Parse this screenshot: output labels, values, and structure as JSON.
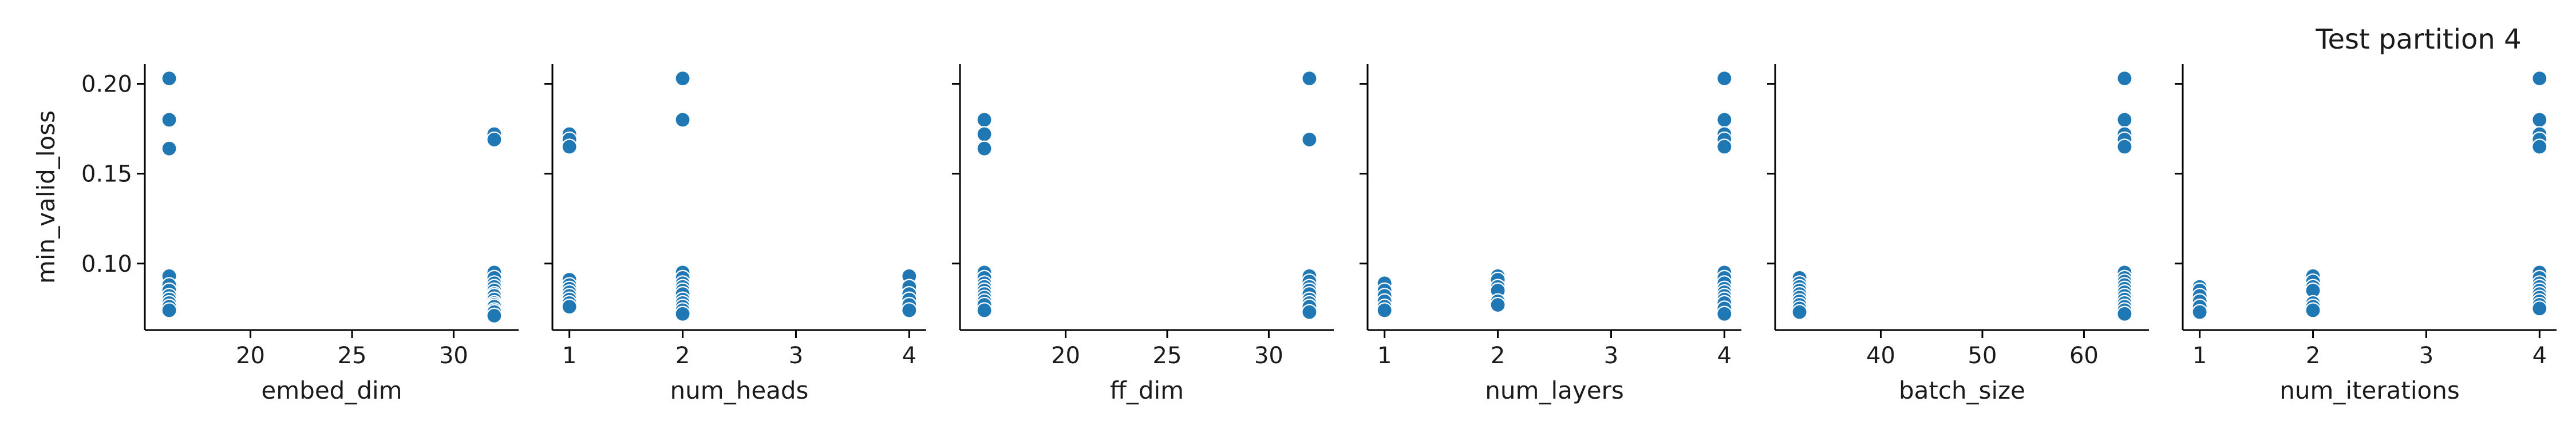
{
  "figure": {
    "title": "Test partition 4"
  },
  "chart_data": [
    {
      "type": "scatter",
      "xlabel": "embed_dim",
      "ylabel": "min_valid_loss",
      "xlim": [
        14.8,
        33.2
      ],
      "ylim": [
        0.063,
        0.211
      ],
      "xticks": [
        20,
        25,
        30
      ],
      "yticks": [
        0.1,
        0.15,
        0.2
      ],
      "color": "#1f77b4",
      "x": [
        16,
        16,
        16,
        16,
        16,
        16,
        16,
        16,
        16,
        16,
        16,
        32,
        32,
        32,
        32,
        32,
        32,
        32,
        32,
        32,
        32,
        32,
        32,
        32,
        32,
        32,
        32
      ],
      "y": [
        0.203,
        0.18,
        0.164,
        0.093,
        0.088,
        0.085,
        0.082,
        0.08,
        0.078,
        0.076,
        0.074,
        0.172,
        0.169,
        0.095,
        0.092,
        0.089,
        0.087,
        0.085,
        0.083,
        0.082,
        0.08,
        0.078,
        0.077,
        0.076,
        0.074,
        0.073,
        0.071
      ]
    },
    {
      "type": "scatter",
      "xlabel": "num_heads",
      "ylabel": "",
      "xlim": [
        0.85,
        4.15
      ],
      "ylim": [
        0.063,
        0.211
      ],
      "xticks": [
        1,
        2,
        3,
        4
      ],
      "yticks": [
        0.1,
        0.15,
        0.2
      ],
      "color": "#1f77b4",
      "x": [
        1,
        1,
        1,
        1,
        1,
        1,
        1,
        1,
        1,
        1,
        1,
        2,
        2,
        2,
        2,
        2,
        2,
        2,
        2,
        2,
        2,
        2,
        2,
        2,
        4,
        4,
        4,
        4,
        4,
        4
      ],
      "y": [
        0.172,
        0.169,
        0.165,
        0.091,
        0.088,
        0.086,
        0.084,
        0.082,
        0.08,
        0.078,
        0.076,
        0.203,
        0.18,
        0.095,
        0.092,
        0.089,
        0.087,
        0.085,
        0.083,
        0.08,
        0.078,
        0.076,
        0.074,
        0.072,
        0.093,
        0.087,
        0.083,
        0.08,
        0.077,
        0.074
      ]
    },
    {
      "type": "scatter",
      "xlabel": "ff_dim",
      "ylabel": "",
      "xlim": [
        14.8,
        33.2
      ],
      "ylim": [
        0.063,
        0.211
      ],
      "xticks": [
        20,
        25,
        30
      ],
      "yticks": [
        0.1,
        0.15,
        0.2
      ],
      "color": "#1f77b4",
      "x": [
        16,
        16,
        16,
        16,
        16,
        16,
        16,
        16,
        16,
        16,
        16,
        16,
        16,
        32,
        32,
        32,
        32,
        32,
        32,
        32,
        32,
        32,
        32,
        32
      ],
      "y": [
        0.18,
        0.172,
        0.164,
        0.095,
        0.092,
        0.089,
        0.087,
        0.085,
        0.083,
        0.081,
        0.079,
        0.077,
        0.074,
        0.203,
        0.169,
        0.093,
        0.09,
        0.087,
        0.085,
        0.083,
        0.08,
        0.078,
        0.076,
        0.073
      ]
    },
    {
      "type": "scatter",
      "xlabel": "num_layers",
      "ylabel": "",
      "xlim": [
        0.85,
        4.15
      ],
      "ylim": [
        0.063,
        0.211
      ],
      "xticks": [
        1,
        2,
        3,
        4
      ],
      "yticks": [
        0.1,
        0.15,
        0.2
      ],
      "color": "#1f77b4",
      "x": [
        1,
        1,
        1,
        1,
        1,
        1,
        2,
        2,
        2,
        2,
        2,
        2,
        4,
        4,
        4,
        4,
        4,
        4,
        4,
        4,
        4,
        4,
        4,
        4,
        4,
        4,
        4
      ],
      "y": [
        0.089,
        0.085,
        0.082,
        0.079,
        0.076,
        0.074,
        0.093,
        0.091,
        0.087,
        0.085,
        0.079,
        0.077,
        0.203,
        0.18,
        0.172,
        0.169,
        0.165,
        0.095,
        0.092,
        0.089,
        0.086,
        0.084,
        0.082,
        0.08,
        0.078,
        0.075,
        0.072
      ]
    },
    {
      "type": "scatter",
      "xlabel": "batch_size",
      "ylabel": "",
      "xlim": [
        29.6,
        66.4
      ],
      "ylim": [
        0.063,
        0.211
      ],
      "xticks": [
        40,
        50,
        60
      ],
      "yticks": [
        0.1,
        0.15,
        0.2
      ],
      "color": "#1f77b4",
      "x": [
        32,
        32,
        32,
        32,
        32,
        32,
        32,
        32,
        32,
        32,
        64,
        64,
        64,
        64,
        64,
        64,
        64,
        64,
        64,
        64,
        64,
        64,
        64,
        64,
        64,
        64,
        64
      ],
      "y": [
        0.092,
        0.089,
        0.087,
        0.085,
        0.083,
        0.081,
        0.079,
        0.077,
        0.075,
        0.073,
        0.203,
        0.18,
        0.172,
        0.169,
        0.165,
        0.095,
        0.092,
        0.09,
        0.088,
        0.086,
        0.084,
        0.082,
        0.08,
        0.078,
        0.076,
        0.074,
        0.072
      ]
    },
    {
      "type": "scatter",
      "xlabel": "num_iterations",
      "ylabel": "",
      "xlim": [
        0.85,
        4.15
      ],
      "ylim": [
        0.063,
        0.211
      ],
      "xticks": [
        1,
        2,
        3,
        4
      ],
      "yticks": [
        0.1,
        0.15,
        0.2
      ],
      "color": "#1f77b4",
      "x": [
        1,
        1,
        1,
        1,
        1,
        1,
        2,
        2,
        2,
        2,
        2,
        2,
        2,
        4,
        4,
        4,
        4,
        4,
        4,
        4,
        4,
        4,
        4,
        4,
        4,
        4,
        4,
        4
      ],
      "y": [
        0.087,
        0.085,
        0.082,
        0.079,
        0.076,
        0.073,
        0.093,
        0.09,
        0.087,
        0.085,
        0.078,
        0.076,
        0.074,
        0.203,
        0.18,
        0.172,
        0.169,
        0.165,
        0.095,
        0.092,
        0.089,
        0.087,
        0.085,
        0.083,
        0.081,
        0.079,
        0.077,
        0.075
      ]
    }
  ]
}
